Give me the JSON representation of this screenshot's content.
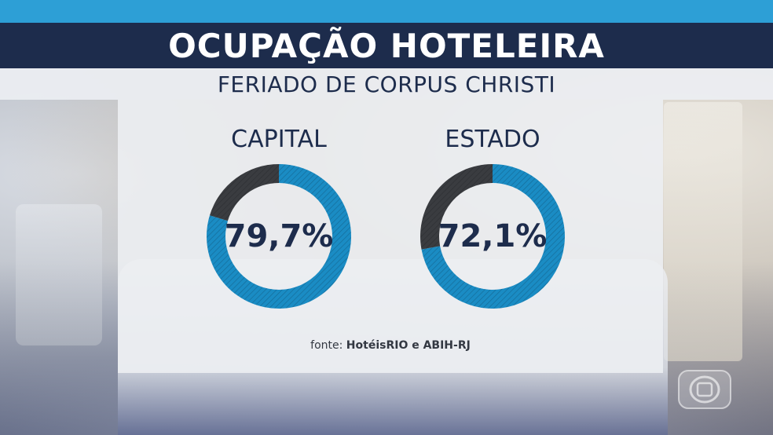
{
  "header": {
    "title": "OCUPAÇÃO HOTELEIRA",
    "subtitle": "FERIADO DE CORPUS CHRISTI"
  },
  "source": {
    "prefix": "fonte:",
    "name": "HotéisRIO e ABIH-RJ"
  },
  "colors": {
    "accent": "#2d9fd6",
    "navy": "#1d2c4c",
    "donut_fill": "#1a8cc4",
    "donut_rest": "#3a3c40"
  },
  "logo_icon": "globo-logo-icon",
  "chart_data": [
    {
      "type": "pie",
      "variant": "donut",
      "title": "CAPITAL",
      "value": 79.7,
      "value_label": "79,7%",
      "max": 100
    },
    {
      "type": "pie",
      "variant": "donut",
      "title": "ESTADO",
      "value": 72.1,
      "value_label": "72,1%",
      "max": 100
    }
  ]
}
